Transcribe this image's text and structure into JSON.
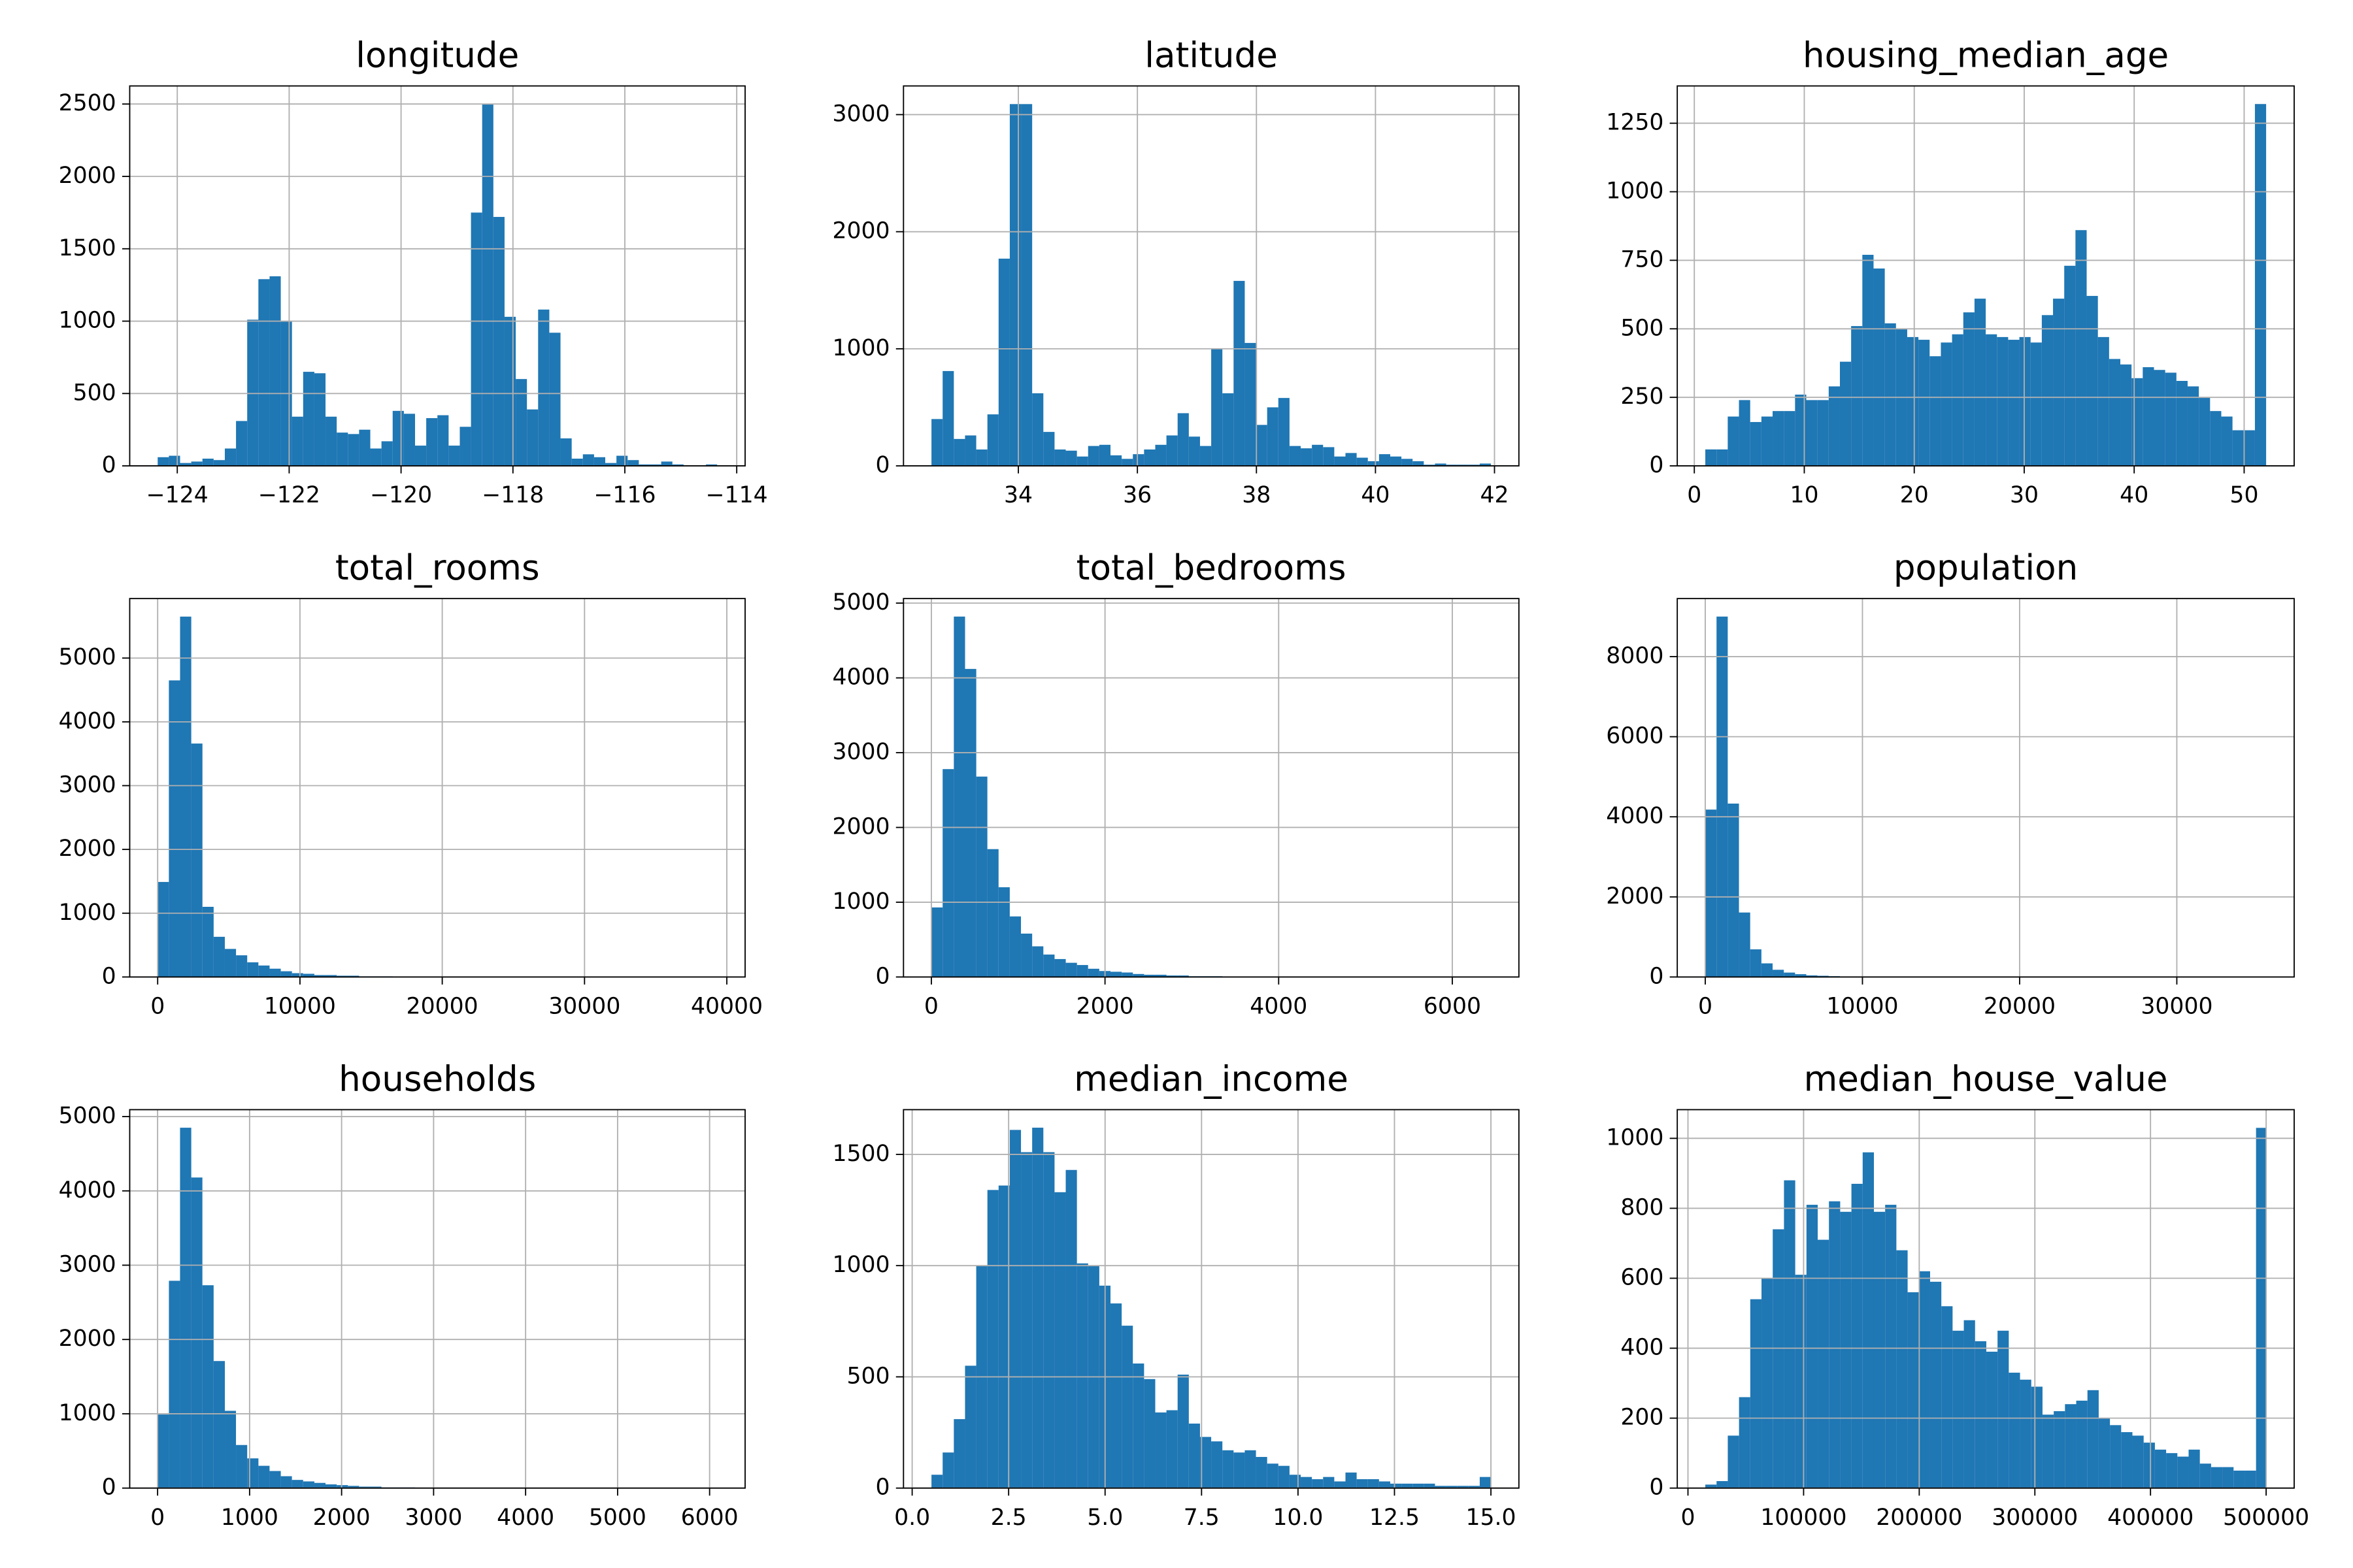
{
  "chart_data": [
    {
      "type": "histogram",
      "title": "longitude",
      "color": "#1f77b4",
      "grid": true,
      "bins": [
        -124.35,
        -124.15,
        -123.95,
        -123.75,
        -123.55,
        -123.35,
        -123.15,
        -122.95,
        -122.75,
        -122.55,
        -122.35,
        -122.15,
        -121.95,
        -121.75,
        -121.55,
        -121.35,
        -121.15,
        -120.95,
        -120.75,
        -120.55,
        -120.35,
        -120.15,
        -119.95,
        -119.75,
        -119.55,
        -119.35,
        -119.15,
        -118.95,
        -118.75,
        -118.55,
        -118.35,
        -118.15,
        -117.95,
        -117.75,
        -117.55,
        -117.35,
        -117.15,
        -116.95,
        -116.75,
        -116.55,
        -116.35,
        -116.15,
        -115.95,
        -115.75,
        -115.55,
        -115.35,
        -115.15,
        -114.95,
        -114.75,
        -114.55,
        -114.35
      ],
      "values": [
        60,
        70,
        20,
        30,
        50,
        40,
        120,
        310,
        1010,
        1290,
        1310,
        1000,
        340,
        650,
        640,
        340,
        230,
        220,
        250,
        120,
        170,
        380,
        360,
        140,
        330,
        350,
        140,
        270,
        1750,
        2500,
        1720,
        1030,
        600,
        390,
        1080,
        920,
        190,
        50,
        80,
        60,
        20,
        70,
        40,
        10,
        10,
        30,
        10,
        0,
        0,
        10
      ],
      "xlim": [
        -124.85,
        -113.85
      ],
      "ylim": [
        0,
        2625
      ],
      "xticks": [
        {
          "value": -124,
          "label": "−124"
        },
        {
          "value": -122,
          "label": "−122"
        },
        {
          "value": -120,
          "label": "−120"
        },
        {
          "value": -118,
          "label": "−118"
        },
        {
          "value": -116,
          "label": "−116"
        },
        {
          "value": -114,
          "label": "−114"
        }
      ],
      "yticks": [
        0,
        500,
        1000,
        1500,
        2000,
        2500
      ]
    },
    {
      "type": "histogram",
      "title": "latitude",
      "color": "#1f77b4",
      "grid": true,
      "bins": [
        32.54,
        32.728,
        32.916,
        33.104,
        33.292,
        33.48,
        33.668,
        33.856,
        34.044,
        34.232,
        34.42,
        34.608,
        34.796,
        34.984,
        35.172,
        35.36,
        35.548,
        35.736,
        35.924,
        36.112,
        36.3,
        36.488,
        36.676,
        36.864,
        37.052,
        37.24,
        37.428,
        37.616,
        37.804,
        37.992,
        38.18,
        38.368,
        38.556,
        38.744,
        38.932,
        39.12,
        39.308,
        39.496,
        39.684,
        39.872,
        40.06,
        40.248,
        40.436,
        40.624,
        40.812,
        41.0,
        41.188,
        41.376,
        41.564,
        41.752,
        41.94
      ],
      "values": [
        400,
        810,
        230,
        260,
        140,
        440,
        1770,
        3090,
        3090,
        620,
        290,
        140,
        130,
        80,
        170,
        180,
        90,
        60,
        100,
        140,
        180,
        260,
        450,
        250,
        170,
        1000,
        620,
        1580,
        1050,
        350,
        500,
        580,
        170,
        150,
        180,
        160,
        80,
        110,
        70,
        40,
        100,
        80,
        60,
        40,
        10,
        20,
        10,
        10,
        10,
        20
      ],
      "xlim": [
        32.07,
        42.41
      ],
      "ylim": [
        0,
        3245
      ],
      "xticks": [
        34,
        36,
        38,
        40,
        42
      ],
      "yticks": [
        0,
        1000,
        2000,
        3000
      ]
    },
    {
      "type": "histogram",
      "title": "housing_median_age",
      "color": "#1f77b4",
      "grid": true,
      "bins": [
        1,
        2.02,
        3.04,
        4.06,
        5.08,
        6.1,
        7.12,
        8.14,
        9.16,
        10.18,
        11.2,
        12.22,
        13.24,
        14.26,
        15.28,
        16.3,
        17.32,
        18.34,
        19.36,
        20.38,
        21.4,
        22.42,
        23.44,
        24.46,
        25.48,
        26.5,
        27.52,
        28.54,
        29.56,
        30.58,
        31.6,
        32.62,
        33.64,
        34.66,
        35.68,
        36.7,
        37.72,
        38.74,
        39.76,
        40.78,
        41.8,
        42.82,
        43.84,
        44.86,
        45.88,
        46.9,
        47.92,
        48.94,
        49.96,
        50.98,
        52
      ],
      "values": [
        60,
        60,
        180,
        240,
        160,
        180,
        200,
        200,
        260,
        240,
        240,
        290,
        380,
        510,
        770,
        720,
        520,
        500,
        470,
        460,
        400,
        450,
        480,
        560,
        610,
        480,
        470,
        460,
        470,
        450,
        550,
        610,
        730,
        860,
        620,
        470,
        390,
        370,
        320,
        360,
        350,
        340,
        310,
        290,
        250,
        200,
        180,
        130,
        130,
        1320
      ],
      "xlim": [
        -1.55,
        54.55
      ],
      "ylim": [
        0,
        1386
      ],
      "xticks": [
        0,
        10,
        20,
        30,
        40,
        50
      ],
      "yticks": [
        0,
        250,
        500,
        750,
        1000,
        1250
      ]
    },
    {
      "type": "histogram",
      "title": "total_rooms",
      "color": "#1f77b4",
      "grid": true,
      "bins": [
        2,
        788,
        1575,
        2361,
        3147,
        3934,
        4720,
        5507,
        6293,
        7079,
        7866,
        8652,
        9438,
        10225,
        11011,
        11797,
        12584,
        13370,
        14157,
        14943,
        15729,
        16516,
        17302,
        18088,
        18875,
        19661,
        20447,
        21234,
        22020,
        22806,
        23593,
        24379,
        25166,
        25952,
        26738,
        27525,
        28311,
        29097,
        29884,
        30670,
        31456,
        32243,
        33029,
        33815,
        34602,
        35388,
        36175,
        36961,
        37747,
        38534,
        39320
      ],
      "values": [
        1490,
        4650,
        5650,
        3660,
        1100,
        630,
        440,
        340,
        230,
        180,
        130,
        90,
        60,
        50,
        30,
        30,
        20,
        20,
        10,
        10,
        10,
        5,
        5,
        5,
        3,
        3,
        2,
        2,
        1,
        1,
        1,
        1,
        1,
        0,
        0,
        1,
        0,
        0,
        0,
        0,
        0,
        0,
        0,
        0,
        0,
        0,
        0,
        0,
        0,
        1
      ],
      "xlim": [
        -1964,
        41286
      ],
      "ylim": [
        0,
        5933
      ],
      "xticks": [
        0,
        10000,
        20000,
        30000,
        40000
      ],
      "yticks": [
        0,
        1000,
        2000,
        3000,
        4000,
        5000
      ]
    },
    {
      "type": "histogram",
      "title": "total_bedrooms",
      "color": "#1f77b4",
      "grid": true,
      "bins": [
        1,
        130,
        259,
        388,
        517,
        645,
        774,
        903,
        1032,
        1161,
        1290,
        1419,
        1548,
        1677,
        1805,
        1934,
        2063,
        2192,
        2321,
        2450,
        2579,
        2708,
        2836,
        2965,
        3094,
        3223,
        3352,
        3481,
        3610,
        3739,
        3868,
        3996,
        4125,
        4254,
        4383,
        4512,
        4641,
        4770,
        4899,
        5027,
        5156,
        5285,
        5414,
        5543,
        5672,
        5801,
        5930,
        6059,
        6187,
        6316,
        6445
      ],
      "values": [
        930,
        2780,
        4820,
        4120,
        2680,
        1710,
        1200,
        810,
        580,
        410,
        300,
        240,
        190,
        160,
        110,
        80,
        70,
        60,
        40,
        30,
        30,
        20,
        20,
        10,
        10,
        10,
        5,
        5,
        5,
        3,
        3,
        2,
        2,
        2,
        1,
        1,
        1,
        1,
        1,
        0,
        0,
        1,
        0,
        0,
        0,
        0,
        0,
        0,
        0,
        1
      ],
      "xlim": [
        -321,
        6767
      ],
      "ylim": [
        0,
        5061
      ],
      "xticks": [
        0,
        2000,
        4000,
        6000
      ],
      "yticks": [
        0,
        1000,
        2000,
        3000,
        4000,
        5000
      ]
    },
    {
      "type": "histogram",
      "title": "population",
      "color": "#1f77b4",
      "grid": true,
      "bins": [
        3,
        717,
        1430,
        2144,
        2857,
        3571,
        4285,
        4998,
        5712,
        6425,
        7139,
        7852,
        8566,
        9280,
        9993,
        10707,
        11420,
        12134,
        12847,
        13561,
        14275,
        14988,
        15702,
        16415,
        17129,
        17843,
        18556,
        19270,
        19983,
        20697,
        21410,
        22124,
        22838,
        23551,
        24265,
        24978,
        25692,
        26405,
        27119,
        27833,
        28546,
        29260,
        29973,
        30687,
        31400,
        32114,
        32828,
        33541,
        34255,
        34968,
        35682
      ],
      "values": [
        4180,
        9000,
        4330,
        1610,
        690,
        340,
        180,
        110,
        70,
        40,
        30,
        20,
        10,
        10,
        5,
        5,
        3,
        2,
        2,
        1,
        1,
        1,
        1,
        1,
        0,
        0,
        0,
        0,
        1,
        0,
        0,
        0,
        0,
        0,
        0,
        0,
        0,
        0,
        0,
        0,
        0,
        0,
        0,
        0,
        0,
        0,
        0,
        0,
        0,
        1
      ],
      "xlim": [
        -1781,
        37466
      ],
      "ylim": [
        0,
        9450
      ],
      "xticks": [
        0,
        10000,
        20000,
        30000
      ],
      "yticks": [
        0,
        2000,
        4000,
        6000,
        8000
      ]
    },
    {
      "type": "histogram",
      "title": "households",
      "color": "#1f77b4",
      "grid": true,
      "bins": [
        1,
        123,
        244,
        366,
        487,
        609,
        731,
        852,
        974,
        1096,
        1217,
        1339,
        1460,
        1582,
        1704,
        1825,
        1947,
        2069,
        2190,
        2312,
        2433,
        2555,
        2677,
        2798,
        2920,
        3042,
        3163,
        3285,
        3406,
        3528,
        3650,
        3771,
        3893,
        4015,
        4136,
        4258,
        4379,
        4501,
        4623,
        4744,
        4866,
        4988,
        5109,
        5231,
        5352,
        5474,
        5596,
        5717,
        5839,
        5961,
        6082
      ],
      "values": [
        990,
        2790,
        4850,
        4180,
        2730,
        1710,
        1040,
        580,
        400,
        300,
        230,
        160,
        110,
        90,
        70,
        50,
        40,
        30,
        20,
        20,
        10,
        10,
        10,
        5,
        5,
        5,
        3,
        3,
        2,
        2,
        1,
        1,
        1,
        1,
        1,
        0,
        1,
        0,
        0,
        0,
        0,
        0,
        0,
        0,
        0,
        0,
        0,
        0,
        0,
        1
      ],
      "xlim": [
        -303,
        6386
      ],
      "ylim": [
        0,
        5093
      ],
      "xticks": [
        0,
        1000,
        2000,
        3000,
        4000,
        5000,
        6000
      ],
      "yticks": [
        0,
        1000,
        2000,
        3000,
        4000,
        5000
      ]
    },
    {
      "type": "histogram",
      "title": "median_income",
      "color": "#1f77b4",
      "grid": true,
      "bins": [
        0.5,
        0.79,
        1.08,
        1.37,
        1.66,
        1.95,
        2.24,
        2.53,
        2.82,
        3.11,
        3.4,
        3.69,
        3.98,
        4.27,
        4.56,
        4.85,
        5.14,
        5.43,
        5.72,
        6.01,
        6.3,
        6.59,
        6.88,
        7.17,
        7.46,
        7.75,
        8.04,
        8.33,
        8.62,
        8.91,
        9.2,
        9.49,
        9.78,
        10.07,
        10.36,
        10.65,
        10.94,
        11.23,
        11.52,
        11.81,
        12.1,
        12.39,
        12.68,
        12.97,
        13.26,
        13.55,
        13.84,
        14.13,
        14.42,
        14.71,
        15
      ],
      "values": [
        60,
        160,
        310,
        550,
        1000,
        1340,
        1360,
        1610,
        1510,
        1620,
        1510,
        1330,
        1430,
        1010,
        1000,
        910,
        830,
        730,
        560,
        490,
        340,
        350,
        510,
        290,
        230,
        210,
        170,
        160,
        170,
        140,
        110,
        100,
        60,
        50,
        40,
        50,
        30,
        70,
        40,
        40,
        30,
        20,
        20,
        20,
        20,
        10,
        10,
        10,
        10,
        50
      ],
      "xlim": [
        -0.225,
        15.725
      ],
      "ylim": [
        0,
        1701
      ],
      "xticks": [
        {
          "value": 0,
          "label": "0.0"
        },
        2.5,
        {
          "value": 5,
          "label": "5.0"
        },
        7.5,
        {
          "value": 10,
          "label": "10.0"
        },
        12.5,
        {
          "value": 15,
          "label": "15.0"
        }
      ],
      "yticks": [
        0,
        500,
        1000,
        1500
      ]
    },
    {
      "type": "histogram",
      "title": "median_house_value",
      "color": "#1f77b4",
      "grid": true,
      "bins": [
        14999,
        24719,
        34439,
        44159,
        53879,
        63599,
        73319,
        83039,
        92759,
        102479,
        112199,
        121919,
        131639,
        141359,
        151079,
        160799,
        170519,
        180239,
        189959,
        199679,
        209399,
        219119,
        228839,
        238559,
        248279,
        257999,
        267719,
        277439,
        287159,
        296879,
        306599,
        316319,
        326039,
        335759,
        345479,
        355199,
        364919,
        374639,
        384359,
        394079,
        403799,
        413519,
        423239,
        432959,
        442679,
        452399,
        462119,
        471839,
        481559,
        491279,
        500001
      ],
      "values": [
        10,
        20,
        150,
        260,
        540,
        600,
        740,
        880,
        610,
        810,
        710,
        820,
        790,
        870,
        960,
        790,
        810,
        680,
        560,
        620,
        590,
        520,
        450,
        480,
        420,
        390,
        450,
        330,
        310,
        290,
        210,
        220,
        240,
        250,
        280,
        200,
        180,
        160,
        150,
        130,
        110,
        100,
        90,
        110,
        70,
        60,
        60,
        50,
        50,
        1030
      ],
      "xlim": [
        -9251,
        524251
      ],
      "ylim": [
        0,
        1082
      ],
      "xticks": [
        0,
        100000,
        200000,
        300000,
        400000,
        500000
      ],
      "yticks": [
        0,
        200,
        400,
        600,
        800,
        1000
      ]
    }
  ]
}
